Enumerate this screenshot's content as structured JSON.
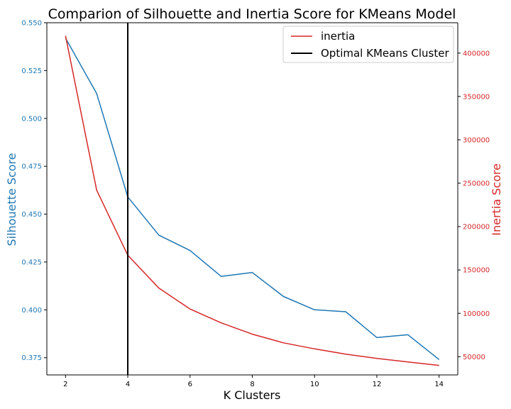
{
  "chart_data": {
    "type": "line",
    "title": "Comparion of Silhouette and Inertia Score for KMeans Model",
    "xlabel": "K Clusters",
    "ylabel_left": "Silhouette Score",
    "ylabel_right": "Inertia Score",
    "xlim": [
      1.4,
      14.6
    ],
    "ylim_left": [
      0.366,
      0.55
    ],
    "ylim_right": [
      29000,
      435000
    ],
    "x_ticks": [
      2,
      4,
      6,
      8,
      10,
      12,
      14
    ],
    "y_ticks_left": [
      0.375,
      0.4,
      0.425,
      0.45,
      0.475,
      0.5,
      0.525,
      0.55
    ],
    "y_ticks_right": [
      50000,
      100000,
      150000,
      200000,
      250000,
      300000,
      350000,
      400000
    ],
    "x": [
      2,
      3,
      4,
      5,
      6,
      7,
      8,
      9,
      10,
      11,
      12,
      13,
      14
    ],
    "series": [
      {
        "name": "",
        "axis": "left",
        "color": "#1f77b4",
        "values": [
          0.542,
          0.513,
          0.459,
          0.439,
          0.431,
          0.4175,
          0.4195,
          0.407,
          0.4,
          0.399,
          0.3855,
          0.387,
          0.374
        ]
      },
      {
        "name": "inertia",
        "axis": "right",
        "color": "#d62728",
        "values": [
          420000,
          242000,
          167000,
          129000,
          105000,
          89000,
          76000,
          66000,
          59000,
          53000,
          48000,
          44000,
          40000
        ]
      }
    ],
    "vline": {
      "x": 4,
      "name": "Optimal KMeans Cluster",
      "color": "#000000"
    },
    "legend": {
      "placement": "top-right",
      "entries": [
        {
          "label": "inertia",
          "color": "#d62728"
        },
        {
          "label": "Optimal KMeans Cluster",
          "color": "#000000"
        }
      ]
    },
    "grid": false,
    "colors": {
      "left_axis": "#1f77b4",
      "right_axis": "#d62728"
    }
  }
}
